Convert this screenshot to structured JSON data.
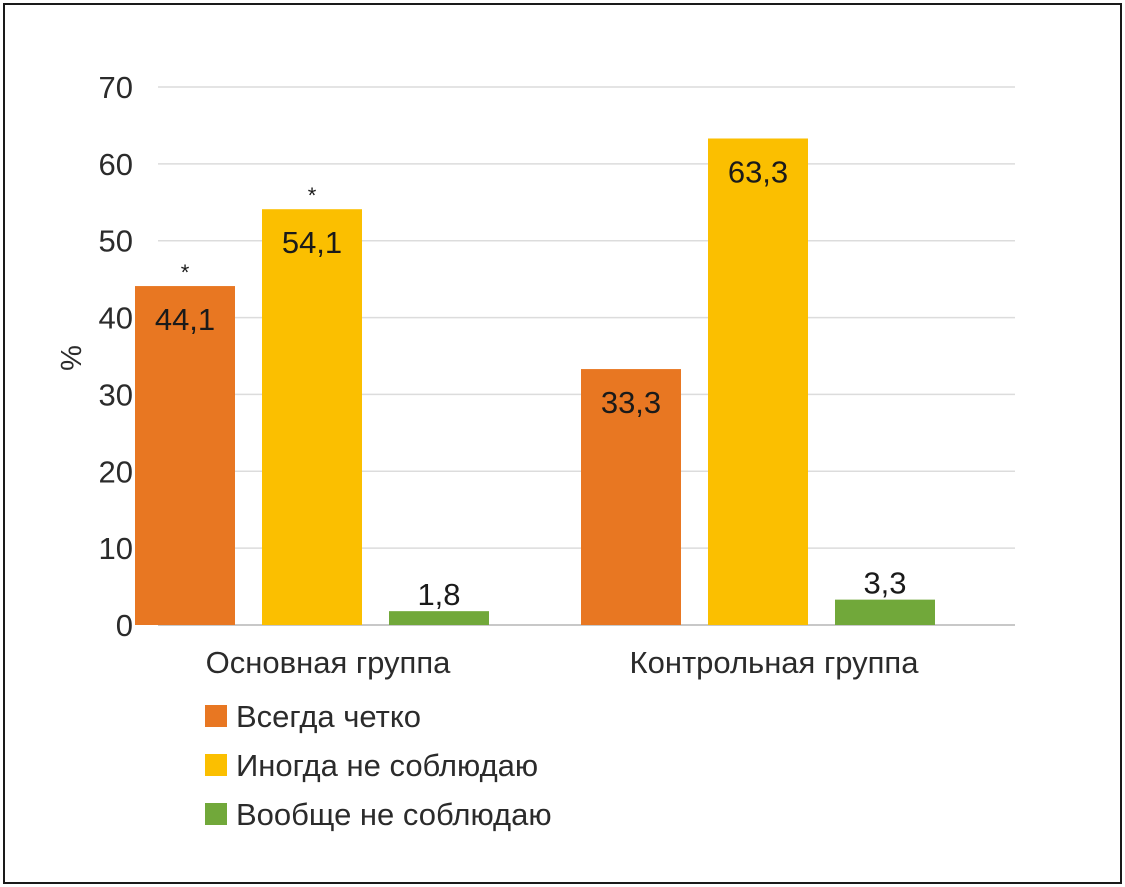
{
  "chart_data": {
    "type": "bar",
    "ylabel": "%",
    "ylim": [
      0,
      70
    ],
    "yticks": [
      "0",
      "10",
      "20",
      "30",
      "40",
      "50",
      "60",
      "70"
    ],
    "grid": true,
    "legend_position": "bottom-left",
    "categories": [
      "Основная группа",
      "Контрольная группа"
    ],
    "series": [
      {
        "name": "Всегда четко",
        "color": "#E87722",
        "values": [
          44.1,
          33.3
        ],
        "labels": [
          "44,1",
          "33,3"
        ],
        "annotations": [
          "*",
          ""
        ]
      },
      {
        "name": "Иногда не соблюдаю",
        "color": "#FBBF00",
        "values": [
          54.1,
          63.3
        ],
        "labels": [
          "54,1",
          "63,3"
        ],
        "annotations": [
          "*",
          ""
        ]
      },
      {
        "name": "Вообще не соблюдаю",
        "color": "#71A83A",
        "values": [
          1.8,
          3.3
        ],
        "labels": [
          "1,8",
          "3,3"
        ],
        "annotations": [
          "",
          ""
        ]
      }
    ]
  }
}
